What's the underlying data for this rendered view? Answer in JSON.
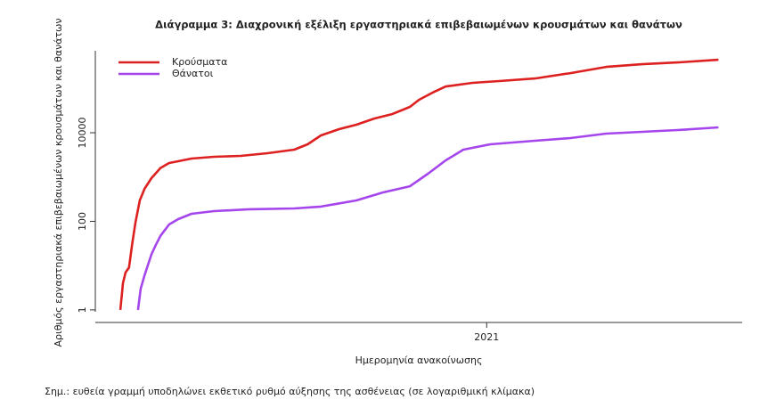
{
  "chart_data": {
    "type": "line",
    "title": "Διάγραμμα 3: Διαχρονική εξέλιξη εργαστηριακά επιβεβαιωμένων κρουσμάτων και θανάτων",
    "y_label": "Αριθμός εργαστηριακά επιβεβαιωμένων κρουσμάτων και θανάτων",
    "x_label": "Ημερομηνία ανακοίνωσης",
    "note": "Σημ.: ευθεία γραμμή υποδηλώνει εκθετικό ρυθμό αύξησης της ασθένειας (σε λογαριθμική κλίμακα)",
    "log_y": true,
    "legend": "top-left",
    "xlim": [
      2020.093,
      2021.592
    ],
    "xticks": [
      2021
    ],
    "ylim": [
      0.52,
      710000
    ],
    "yticks": [
      1,
      100,
      10000
    ],
    "series": [
      {
        "name": "Κρούσματα",
        "color": "#dd2020",
        "x": [
          2020.151,
          2020.157,
          2020.163,
          2020.171,
          2020.178,
          2020.186,
          2020.196,
          2020.207,
          2020.223,
          2020.244,
          2020.264,
          2020.285,
          2020.316,
          2020.368,
          2020.43,
          2020.492,
          2020.554,
          2020.585,
          2020.616,
          2020.657,
          2020.698,
          2020.74,
          2020.781,
          2020.822,
          2020.843,
          2020.874,
          2020.905,
          2020.967,
          2021.029,
          2021.112,
          2021.194,
          2021.277,
          2021.36,
          2021.442,
          2021.537
        ],
        "values": [
          1,
          4,
          7,
          9,
          29,
          93,
          297,
          540,
          944,
          1600,
          2070,
          2270,
          2610,
          2870,
          3000,
          3450,
          4150,
          5480,
          8700,
          12000,
          15200,
          21000,
          26400,
          38300,
          55300,
          80000,
          111000,
          134000,
          147000,
          168000,
          222000,
          307000,
          353000,
          387000,
          445000
        ]
      },
      {
        "name": "Θάνατοι",
        "color": "#a545ec",
        "x": [
          2020.192,
          2020.198,
          2020.207,
          2020.213,
          2020.223,
          2020.233,
          2020.244,
          2020.264,
          2020.285,
          2020.316,
          2020.368,
          2020.45,
          2020.554,
          2020.616,
          2020.698,
          2020.76,
          2020.822,
          2020.864,
          2020.905,
          2020.946,
          2021.008,
          2021.112,
          2021.194,
          2021.277,
          2021.36,
          2021.442,
          2021.537
        ],
        "values": [
          1,
          3,
          6,
          9,
          18,
          29,
          47,
          85,
          112,
          148,
          170,
          187,
          195,
          215,
          297,
          450,
          620,
          1190,
          2380,
          4150,
          5480,
          6600,
          7600,
          9550,
          10500,
          11500,
          13200
        ]
      }
    ]
  }
}
